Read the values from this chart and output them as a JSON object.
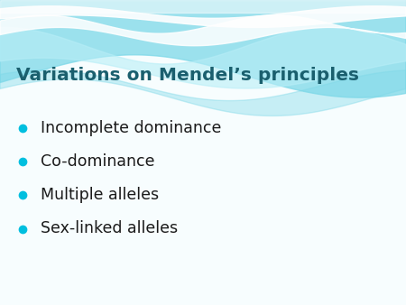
{
  "title": "Variations on Mendel’s principles",
  "title_color": "#1a5f6e",
  "title_fontsize": 14.5,
  "title_bold": true,
  "bullet_items": [
    "Incomplete dominance",
    "Co-dominance",
    "Multiple alleles",
    "Sex-linked alleles"
  ],
  "bullet_color": "#00BFDF",
  "text_color": "#1a1a1a",
  "text_fontsize": 12.5,
  "background_color": "#f7fdfe",
  "body_background": "#f0fafc",
  "wave_cyan": "#7dd8e8",
  "wave_light": "#b8eef7",
  "wave_white": "#e8f9fd"
}
